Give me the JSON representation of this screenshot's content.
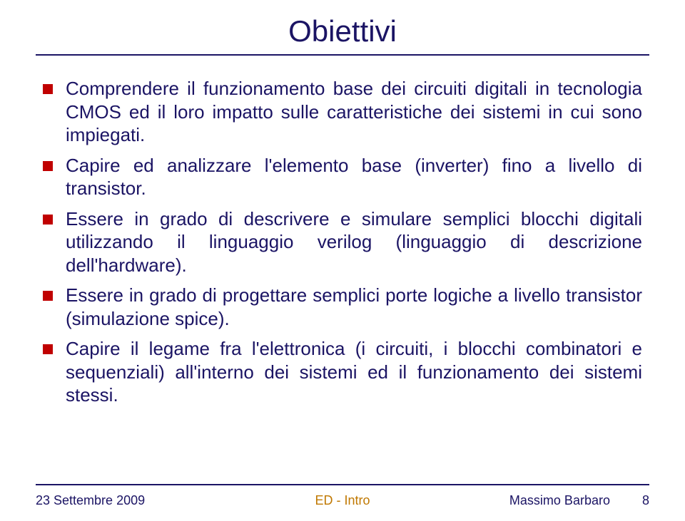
{
  "title": "Obiettivi",
  "bullets": [
    "Comprendere il funzionamento base dei circuiti digitali in tecnologia CMOS ed il loro impatto sulle caratteristiche dei sistemi in cui sono impiegati.",
    "Capire ed analizzare l'elemento base (inverter) fino a livello di transistor.",
    "Essere in grado di descrivere e simulare semplici blocchi digitali utilizzando il linguaggio verilog (linguaggio di descrizione dell'hardware).",
    "Essere in grado di progettare semplici porte logiche a livello transistor (simulazione spice).",
    "Capire il legame fra l'elettronica (i circuiti, i blocchi combinatori e sequenziali) all'interno dei sistemi ed il funzionamento dei sistemi stessi."
  ],
  "footer": {
    "date": "23 Settembre 2009",
    "center": "ED - Intro",
    "author": "Massimo Barbaro",
    "page": "8"
  },
  "colors": {
    "title": "#1b1464",
    "text": "#1b1464",
    "bullet_marker": "#c00000",
    "rule": "#1b1464",
    "footer_center": "#c07800",
    "background": "#ffffff"
  },
  "typography": {
    "title_fontsize": 42,
    "body_fontsize": 26,
    "footer_fontsize": 18,
    "font_family": "Arial"
  }
}
